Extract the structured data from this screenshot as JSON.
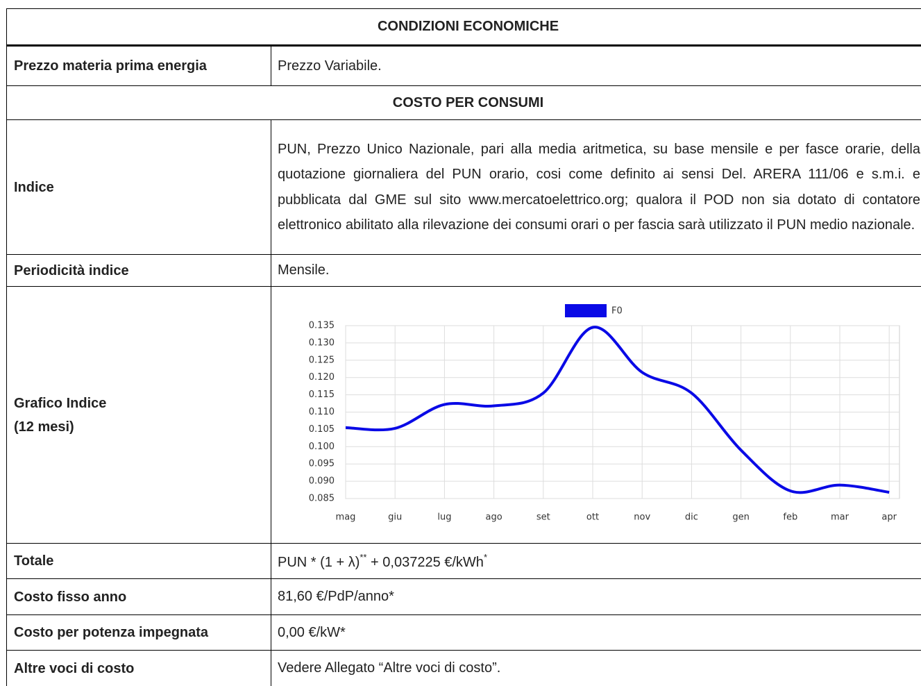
{
  "rows": [
    {
      "section": "CONDIZIONI ECONOMICHE"
    },
    {
      "label": [
        "Prezzo materia prima energia"
      ],
      "value": [
        "Prezzo Variabile."
      ]
    },
    {
      "section": "COSTO PER CONSUMI"
    },
    {
      "label": [
        "Indice"
      ],
      "value": [
        "PUN, Prezzo Unico Nazionale, pari alla media aritmetica, su base mensile e per fasce orarie, della quotazione giornaliera del PUN orario, cosi come definito ai sensi Del. ARERA 111/06 e s.m.i. e pubblicata dal GME sul sito www.mercatoelettrico.org; qualora il POD non sia dotato di contatore elettronico abilitato alla rilevazione dei consumi orari o per fascia sarà utilizzato il PUN medio nazionale."
      ]
    },
    {
      "label": [
        "Periodicità indice"
      ],
      "value": [
        "Mensile."
      ]
    },
    {
      "label": [
        "Grafico Indice",
        "(12 mesi)"
      ]
    },
    {
      "label": [
        "Totale"
      ],
      "value": [
        "PUN * (1 + λ)",
        "**",
        " + 0,037225 €/kWh",
        "*"
      ]
    },
    {
      "label": [
        "Costo fisso anno"
      ],
      "value": [
        "81,60 €/PdP/anno*"
      ]
    },
    {
      "label": [
        "Costo per potenza impegnata"
      ],
      "value": [
        "0,00 €/kW*"
      ]
    },
    {
      "label": [
        "Altre voci di costo"
      ],
      "value": [
        "Vedere Allegato “Altre voci di costo”."
      ]
    }
  ],
  "chart_data": {
    "type": "line",
    "categories": [
      "mag",
      "giu",
      "lug",
      "ago",
      "set",
      "ott",
      "nov",
      "dic",
      "gen",
      "feb",
      "mar",
      "apr"
    ],
    "series": [
      {
        "name": "F0",
        "color": "#0a0ae6",
        "values": [
          0.1055,
          0.1053,
          0.1122,
          0.1118,
          0.1155,
          0.1345,
          0.1215,
          0.1155,
          0.099,
          0.0872,
          0.0889,
          0.0868
        ]
      }
    ],
    "ylim": [
      0.085,
      0.135
    ],
    "yticks": [
      {
        "value": 0.085,
        "label": "0.085"
      },
      {
        "value": 0.09,
        "label": "0.090"
      },
      {
        "value": 0.095,
        "label": "0.095"
      },
      {
        "value": 0.1,
        "label": "0.100"
      },
      {
        "value": 0.105,
        "label": "0.105"
      },
      {
        "value": 0.11,
        "label": "0.110"
      },
      {
        "value": 0.115,
        "label": "0.115"
      },
      {
        "value": 0.12,
        "label": "0.120"
      },
      {
        "value": 0.125,
        "label": "0.125"
      },
      {
        "value": 0.13,
        "label": "0.130"
      },
      {
        "value": 0.135,
        "label": "0.135"
      }
    ],
    "grid": true
  }
}
